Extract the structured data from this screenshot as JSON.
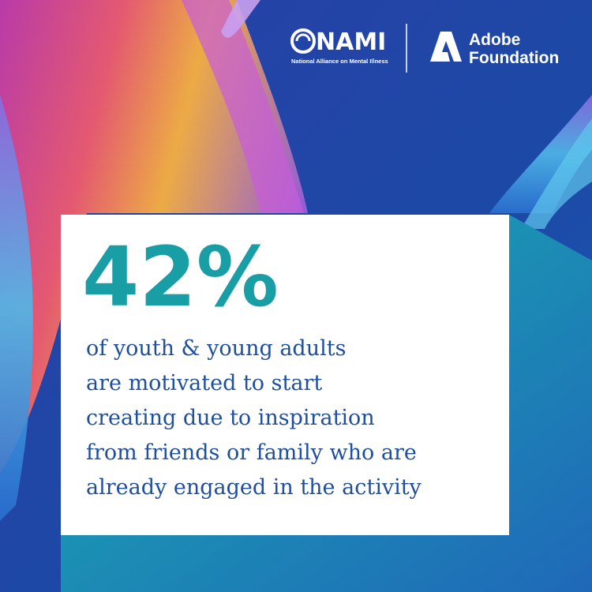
{
  "logos": {
    "nami": {
      "name": "NAMI",
      "tagline": "National Alliance on Mental Illness"
    },
    "adobe": {
      "name": "Adobe",
      "subtitle": "Foundation"
    }
  },
  "stat": {
    "value": "42%",
    "lines": [
      "of youth & young adults",
      "are motivated to start",
      "creating due to inspiration",
      "from friends or family who are",
      "already engaged in the activity"
    ]
  }
}
